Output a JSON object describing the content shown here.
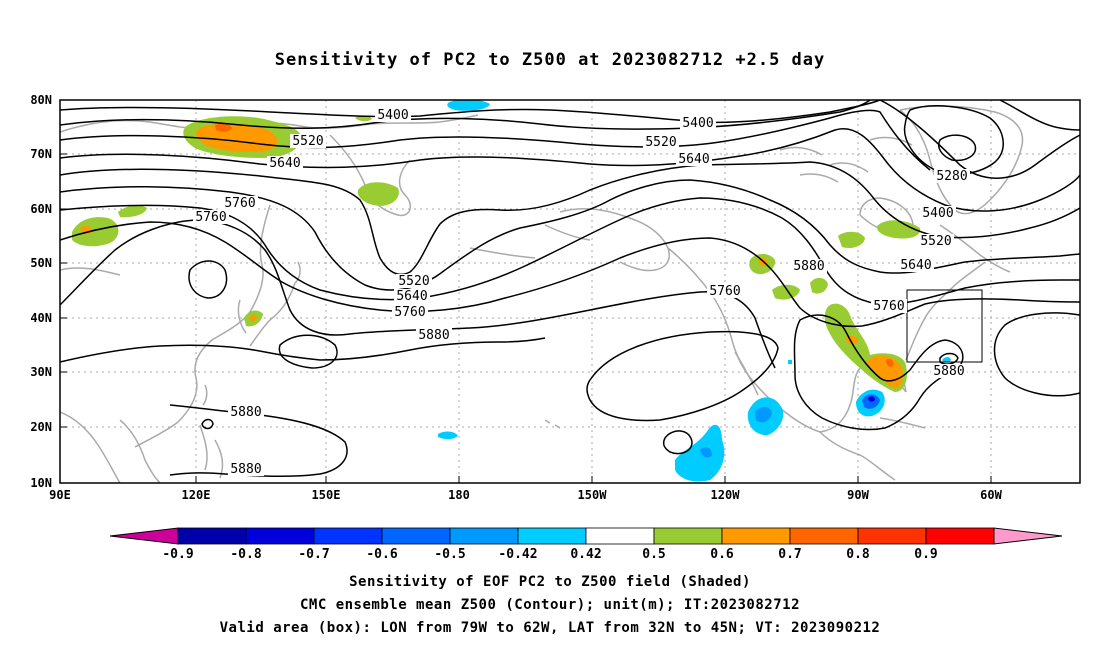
{
  "title": "Sensitivity of PC2 to Z500 at 2023082712 +2.5 day",
  "captions": {
    "line1": "Sensitivity of EOF PC2 to Z500 field (Shaded)",
    "line2": "CMC ensemble mean Z500 (Contour); unit(m); IT:2023082712",
    "line3": "Valid area (box): LON from 79W to 62W, LAT from 32N to 45N; VT: 2023090212"
  },
  "map": {
    "lon_ticks": [
      "90E",
      "120E",
      "150E",
      "180",
      "150W",
      "120W",
      "90W",
      "60W"
    ],
    "lat_ticks": [
      "80N",
      "70N",
      "60N",
      "50N",
      "40N",
      "30N",
      "20N",
      "10N"
    ],
    "colors": {
      "contour": "#000000",
      "coast": "#aaaaaa",
      "grid": "#aaaaaa",
      "shade_neg": "#00bbff",
      "shade_neg_strong": "#0066ff",
      "shade_neg_max": "#0000dd",
      "shade_pos": "#99cc33",
      "shade_pos_mid": "#ff9900",
      "shade_pos_strong": "#ff5500"
    },
    "contour_labels": [
      {
        "id": "5400a",
        "text": "5400"
      },
      {
        "id": "5400b",
        "text": "5400"
      },
      {
        "id": "5400c",
        "text": "5400"
      },
      {
        "id": "5520a",
        "text": "5520"
      },
      {
        "id": "5520b",
        "text": "5520"
      },
      {
        "id": "5520c",
        "text": "5520"
      },
      {
        "id": "5520d",
        "text": "5520"
      },
      {
        "id": "5640a",
        "text": "5640"
      },
      {
        "id": "5640b",
        "text": "5640"
      },
      {
        "id": "5640c",
        "text": "5640"
      },
      {
        "id": "5640d",
        "text": "5640"
      },
      {
        "id": "5760a",
        "text": "5760"
      },
      {
        "id": "5760b",
        "text": "5760"
      },
      {
        "id": "5760c",
        "text": "5760"
      },
      {
        "id": "5760d",
        "text": "5760"
      },
      {
        "id": "5760e",
        "text": "5760"
      },
      {
        "id": "5880a",
        "text": "5880"
      },
      {
        "id": "5880b",
        "text": "5880"
      },
      {
        "id": "5880c",
        "text": "5880"
      },
      {
        "id": "5880d",
        "text": "5880"
      },
      {
        "id": "5880e",
        "text": "5880"
      },
      {
        "id": "5280a",
        "text": "5280"
      }
    ],
    "valid_box": {
      "lon_from": "79W",
      "lon_to": "62W",
      "lat_from": "32N",
      "lat_to": "45N"
    }
  },
  "colorbar": {
    "labels": [
      "-0.9",
      "-0.8",
      "-0.7",
      "-0.6",
      "-0.5",
      "-0.42",
      "0.42",
      "0.5",
      "0.6",
      "0.7",
      "0.8",
      "0.9"
    ],
    "colors": [
      "#cc0099",
      "#0000aa",
      "#0000dd",
      "#0033ff",
      "#0066ff",
      "#0099ff",
      "#00ccff",
      "#ffffff",
      "#99cc33",
      "#ff9900",
      "#ff6600",
      "#ff3300",
      "#ff0000",
      "#ff99cc"
    ]
  }
}
